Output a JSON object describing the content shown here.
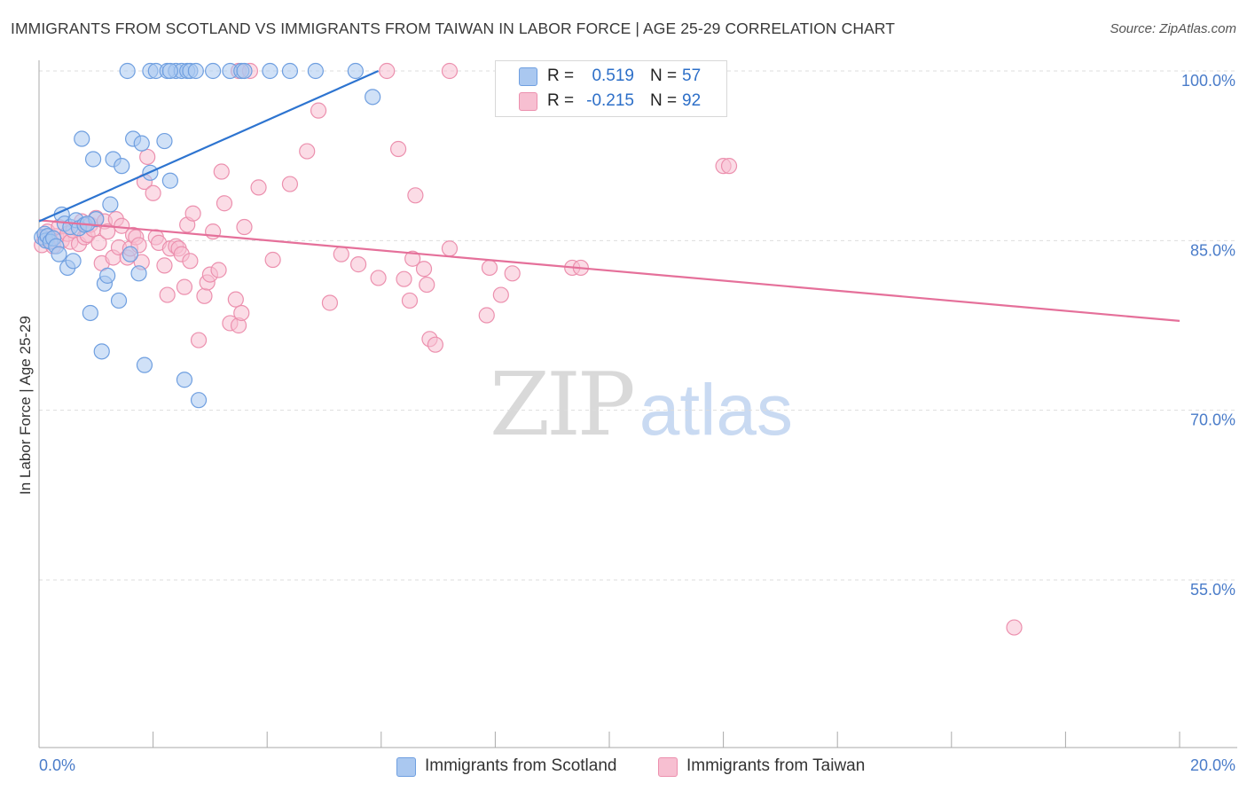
{
  "title": "IMMIGRANTS FROM SCOTLAND VS IMMIGRANTS FROM TAIWAN IN LABOR FORCE | AGE 25-29 CORRELATION CHART",
  "source": "Source: ZipAtlas.com",
  "watermark": {
    "zip": "ZIP",
    "atlas": "atlas"
  },
  "legend": {
    "scotland": {
      "r_label": "R =",
      "r_value": "0.519",
      "n_label": "N =",
      "n_value": "57"
    },
    "taiwan": {
      "r_label": "R =",
      "r_value": "-0.215",
      "n_label": "N =",
      "n_value": "92"
    }
  },
  "bottom_legend": {
    "scotland": "Immigrants from Scotland",
    "taiwan": "Immigrants from Taiwan"
  },
  "colors": {
    "scotland_fill": "#aac8f0",
    "scotland_stroke": "#6f9fe0",
    "scotland_line": "#2d74d0",
    "taiwan_fill": "#f7bfd1",
    "taiwan_stroke": "#ec90ae",
    "taiwan_line": "#e5709a",
    "tick_text": "#4a7cc9",
    "grid": "#dddddd"
  },
  "chart_data": {
    "type": "scatter",
    "title": "IMMIGRANTS FROM SCOTLAND VS IMMIGRANTS FROM TAIWAN IN LABOR FORCE | AGE 25-29 CORRELATION CHART",
    "xlabel": "",
    "ylabel": "In Labor Force | Age 25-29",
    "xlim": [
      0,
      20
    ],
    "ylim": [
      40,
      101.5
    ],
    "x_tick_labels": [
      {
        "value": 0,
        "label": "0.0%"
      },
      {
        "value": 20,
        "label": "20.0%"
      }
    ],
    "y_tick_labels": [
      {
        "value": 100,
        "label": "100.0%"
      },
      {
        "value": 85,
        "label": "85.0%"
      },
      {
        "value": 70,
        "label": "70.0%"
      },
      {
        "value": 55,
        "label": "55.0%"
      }
    ],
    "grid": true,
    "legend_position": "top-center",
    "series": [
      {
        "name": "Immigrants from Scotland",
        "r": 0.519,
        "n": 57,
        "trendline": {
          "x": [
            0.0,
            5.95
          ],
          "y": [
            86.7,
            100.0
          ]
        },
        "points": [
          [
            0.05,
            85.3
          ],
          [
            0.1,
            85.6
          ],
          [
            0.12,
            85.0
          ],
          [
            0.15,
            85.4
          ],
          [
            0.2,
            84.9
          ],
          [
            0.25,
            85.2
          ],
          [
            0.3,
            84.5
          ],
          [
            0.35,
            83.8
          ],
          [
            0.4,
            87.3
          ],
          [
            0.45,
            86.5
          ],
          [
            0.5,
            82.6
          ],
          [
            0.55,
            86.2
          ],
          [
            0.6,
            83.2
          ],
          [
            0.65,
            86.8
          ],
          [
            0.7,
            86.1
          ],
          [
            0.75,
            94.0
          ],
          [
            0.8,
            86.4
          ],
          [
            0.9,
            78.6
          ],
          [
            0.95,
            92.2
          ],
          [
            1.0,
            86.9
          ],
          [
            1.1,
            75.2
          ],
          [
            1.15,
            81.2
          ],
          [
            1.2,
            81.9
          ],
          [
            1.25,
            88.2
          ],
          [
            1.3,
            92.2
          ],
          [
            1.4,
            79.7
          ],
          [
            1.45,
            91.6
          ],
          [
            1.6,
            83.8
          ],
          [
            1.65,
            94.0
          ],
          [
            1.75,
            82.1
          ],
          [
            1.8,
            93.6
          ],
          [
            1.95,
            91.0
          ],
          [
            2.2,
            93.8
          ],
          [
            2.3,
            90.3
          ],
          [
            2.55,
            72.7
          ],
          [
            2.8,
            70.9
          ],
          [
            1.55,
            100.0
          ],
          [
            1.95,
            100.0
          ],
          [
            2.05,
            100.0
          ],
          [
            2.25,
            100.0
          ],
          [
            2.4,
            100.0
          ],
          [
            2.5,
            100.0
          ],
          [
            2.6,
            100.0
          ],
          [
            2.65,
            100.0
          ],
          [
            2.75,
            100.0
          ],
          [
            3.05,
            100.0
          ],
          [
            3.35,
            100.0
          ],
          [
            3.55,
            100.0
          ],
          [
            3.6,
            100.0
          ],
          [
            4.05,
            100.0
          ],
          [
            4.4,
            100.0
          ],
          [
            4.85,
            100.0
          ],
          [
            5.55,
            100.0
          ],
          [
            5.85,
            97.7
          ],
          [
            2.3,
            100.0
          ],
          [
            1.85,
            74.0
          ],
          [
            0.85,
            86.5
          ]
        ]
      },
      {
        "name": "Immigrants from Taiwan",
        "r": -0.215,
        "n": 92,
        "trendline": {
          "x": [
            0.0,
            20.0
          ],
          "y": [
            86.8,
            77.9
          ]
        },
        "points": [
          [
            0.05,
            84.6
          ],
          [
            0.1,
            85.2
          ],
          [
            0.15,
            85.8
          ],
          [
            0.2,
            85.0
          ],
          [
            0.25,
            84.5
          ],
          [
            0.3,
            85.4
          ],
          [
            0.35,
            86.2
          ],
          [
            0.4,
            85.0
          ],
          [
            0.5,
            85.6
          ],
          [
            0.55,
            84.9
          ],
          [
            0.6,
            85.9
          ],
          [
            0.7,
            84.7
          ],
          [
            0.75,
            86.7
          ],
          [
            0.8,
            85.3
          ],
          [
            0.85,
            85.5
          ],
          [
            0.9,
            86.4
          ],
          [
            0.95,
            86.0
          ],
          [
            1.0,
            87.0
          ],
          [
            1.05,
            84.8
          ],
          [
            1.1,
            83.0
          ],
          [
            1.15,
            86.7
          ],
          [
            1.2,
            85.8
          ],
          [
            1.3,
            83.5
          ],
          [
            1.35,
            86.9
          ],
          [
            1.4,
            84.4
          ],
          [
            1.45,
            86.3
          ],
          [
            1.55,
            83.5
          ],
          [
            1.6,
            84.3
          ],
          [
            1.65,
            85.5
          ],
          [
            1.7,
            85.3
          ],
          [
            1.75,
            84.6
          ],
          [
            1.8,
            83.1
          ],
          [
            1.85,
            90.2
          ],
          [
            1.9,
            92.4
          ],
          [
            2.0,
            89.2
          ],
          [
            2.05,
            85.3
          ],
          [
            2.1,
            84.8
          ],
          [
            2.2,
            82.8
          ],
          [
            2.25,
            80.2
          ],
          [
            2.3,
            84.3
          ],
          [
            2.4,
            84.5
          ],
          [
            2.45,
            84.3
          ],
          [
            2.5,
            83.8
          ],
          [
            2.55,
            80.9
          ],
          [
            2.6,
            86.4
          ],
          [
            2.65,
            83.2
          ],
          [
            2.7,
            87.4
          ],
          [
            2.8,
            76.2
          ],
          [
            2.9,
            80.1
          ],
          [
            2.95,
            81.3
          ],
          [
            3.0,
            82.0
          ],
          [
            3.05,
            85.8
          ],
          [
            3.15,
            82.4
          ],
          [
            3.2,
            91.1
          ],
          [
            3.25,
            88.3
          ],
          [
            3.35,
            77.7
          ],
          [
            3.45,
            79.8
          ],
          [
            3.5,
            77.5
          ],
          [
            3.55,
            78.6
          ],
          [
            3.6,
            86.2
          ],
          [
            3.85,
            89.7
          ],
          [
            4.1,
            83.3
          ],
          [
            4.4,
            90.0
          ],
          [
            4.7,
            92.9
          ],
          [
            4.9,
            96.5
          ],
          [
            5.1,
            79.5
          ],
          [
            5.3,
            83.8
          ],
          [
            5.6,
            82.9
          ],
          [
            5.95,
            81.7
          ],
          [
            6.1,
            100.0
          ],
          [
            6.3,
            93.1
          ],
          [
            6.4,
            81.6
          ],
          [
            6.5,
            79.7
          ],
          [
            6.55,
            83.4
          ],
          [
            6.6,
            89.0
          ],
          [
            6.75,
            82.5
          ],
          [
            6.8,
            81.1
          ],
          [
            6.85,
            76.3
          ],
          [
            6.95,
            75.8
          ],
          [
            7.2,
            84.3
          ],
          [
            7.2,
            100.0
          ],
          [
            7.85,
            78.4
          ],
          [
            7.9,
            82.6
          ],
          [
            8.1,
            80.2
          ],
          [
            8.3,
            82.1
          ],
          [
            9.35,
            82.6
          ],
          [
            9.5,
            82.6
          ],
          [
            12.0,
            91.6
          ],
          [
            12.1,
            91.6
          ],
          [
            17.1,
            50.8
          ],
          [
            3.5,
            100.0
          ],
          [
            3.7,
            100.0
          ]
        ]
      }
    ]
  }
}
